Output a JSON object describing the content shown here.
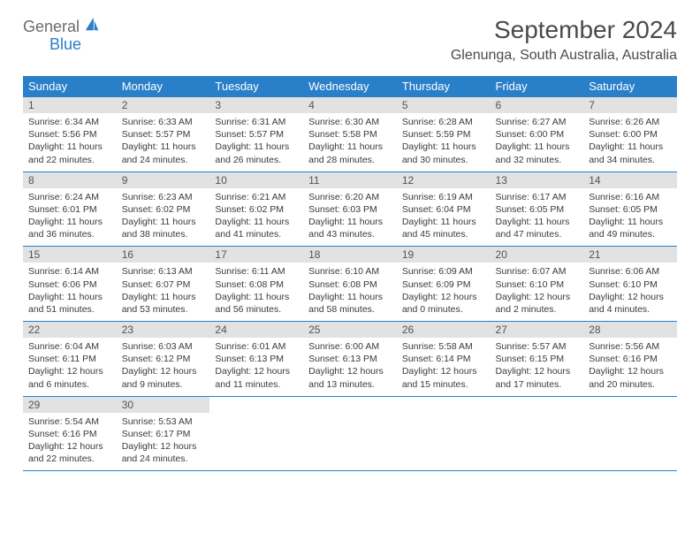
{
  "logo": {
    "general": "General",
    "blue": "Blue"
  },
  "title": "September 2024",
  "location": "Glenunga, South Australia, Australia",
  "colors": {
    "header_bg": "#2a7fc9",
    "header_text": "#ffffff",
    "daynum_bg": "#e2e2e2",
    "daynum_text": "#545454",
    "row_border": "#2a7fc9"
  },
  "weekdays": [
    "Sunday",
    "Monday",
    "Tuesday",
    "Wednesday",
    "Thursday",
    "Friday",
    "Saturday"
  ],
  "weeks": [
    [
      {
        "n": "1",
        "sunrise": "6:34 AM",
        "sunset": "5:56 PM",
        "dl": "11 hours and 22 minutes."
      },
      {
        "n": "2",
        "sunrise": "6:33 AM",
        "sunset": "5:57 PM",
        "dl": "11 hours and 24 minutes."
      },
      {
        "n": "3",
        "sunrise": "6:31 AM",
        "sunset": "5:57 PM",
        "dl": "11 hours and 26 minutes."
      },
      {
        "n": "4",
        "sunrise": "6:30 AM",
        "sunset": "5:58 PM",
        "dl": "11 hours and 28 minutes."
      },
      {
        "n": "5",
        "sunrise": "6:28 AM",
        "sunset": "5:59 PM",
        "dl": "11 hours and 30 minutes."
      },
      {
        "n": "6",
        "sunrise": "6:27 AM",
        "sunset": "6:00 PM",
        "dl": "11 hours and 32 minutes."
      },
      {
        "n": "7",
        "sunrise": "6:26 AM",
        "sunset": "6:00 PM",
        "dl": "11 hours and 34 minutes."
      }
    ],
    [
      {
        "n": "8",
        "sunrise": "6:24 AM",
        "sunset": "6:01 PM",
        "dl": "11 hours and 36 minutes."
      },
      {
        "n": "9",
        "sunrise": "6:23 AM",
        "sunset": "6:02 PM",
        "dl": "11 hours and 38 minutes."
      },
      {
        "n": "10",
        "sunrise": "6:21 AM",
        "sunset": "6:02 PM",
        "dl": "11 hours and 41 minutes."
      },
      {
        "n": "11",
        "sunrise": "6:20 AM",
        "sunset": "6:03 PM",
        "dl": "11 hours and 43 minutes."
      },
      {
        "n": "12",
        "sunrise": "6:19 AM",
        "sunset": "6:04 PM",
        "dl": "11 hours and 45 minutes."
      },
      {
        "n": "13",
        "sunrise": "6:17 AM",
        "sunset": "6:05 PM",
        "dl": "11 hours and 47 minutes."
      },
      {
        "n": "14",
        "sunrise": "6:16 AM",
        "sunset": "6:05 PM",
        "dl": "11 hours and 49 minutes."
      }
    ],
    [
      {
        "n": "15",
        "sunrise": "6:14 AM",
        "sunset": "6:06 PM",
        "dl": "11 hours and 51 minutes."
      },
      {
        "n": "16",
        "sunrise": "6:13 AM",
        "sunset": "6:07 PM",
        "dl": "11 hours and 53 minutes."
      },
      {
        "n": "17",
        "sunrise": "6:11 AM",
        "sunset": "6:08 PM",
        "dl": "11 hours and 56 minutes."
      },
      {
        "n": "18",
        "sunrise": "6:10 AM",
        "sunset": "6:08 PM",
        "dl": "11 hours and 58 minutes."
      },
      {
        "n": "19",
        "sunrise": "6:09 AM",
        "sunset": "6:09 PM",
        "dl": "12 hours and 0 minutes."
      },
      {
        "n": "20",
        "sunrise": "6:07 AM",
        "sunset": "6:10 PM",
        "dl": "12 hours and 2 minutes."
      },
      {
        "n": "21",
        "sunrise": "6:06 AM",
        "sunset": "6:10 PM",
        "dl": "12 hours and 4 minutes."
      }
    ],
    [
      {
        "n": "22",
        "sunrise": "6:04 AM",
        "sunset": "6:11 PM",
        "dl": "12 hours and 6 minutes."
      },
      {
        "n": "23",
        "sunrise": "6:03 AM",
        "sunset": "6:12 PM",
        "dl": "12 hours and 9 minutes."
      },
      {
        "n": "24",
        "sunrise": "6:01 AM",
        "sunset": "6:13 PM",
        "dl": "12 hours and 11 minutes."
      },
      {
        "n": "25",
        "sunrise": "6:00 AM",
        "sunset": "6:13 PM",
        "dl": "12 hours and 13 minutes."
      },
      {
        "n": "26",
        "sunrise": "5:58 AM",
        "sunset": "6:14 PM",
        "dl": "12 hours and 15 minutes."
      },
      {
        "n": "27",
        "sunrise": "5:57 AM",
        "sunset": "6:15 PM",
        "dl": "12 hours and 17 minutes."
      },
      {
        "n": "28",
        "sunrise": "5:56 AM",
        "sunset": "6:16 PM",
        "dl": "12 hours and 20 minutes."
      }
    ],
    [
      {
        "n": "29",
        "sunrise": "5:54 AM",
        "sunset": "6:16 PM",
        "dl": "12 hours and 22 minutes."
      },
      {
        "n": "30",
        "sunrise": "5:53 AM",
        "sunset": "6:17 PM",
        "dl": "12 hours and 24 minutes."
      },
      null,
      null,
      null,
      null,
      null
    ]
  ],
  "labels": {
    "sunrise": "Sunrise: ",
    "sunset": "Sunset: ",
    "daylight": "Daylight: "
  }
}
